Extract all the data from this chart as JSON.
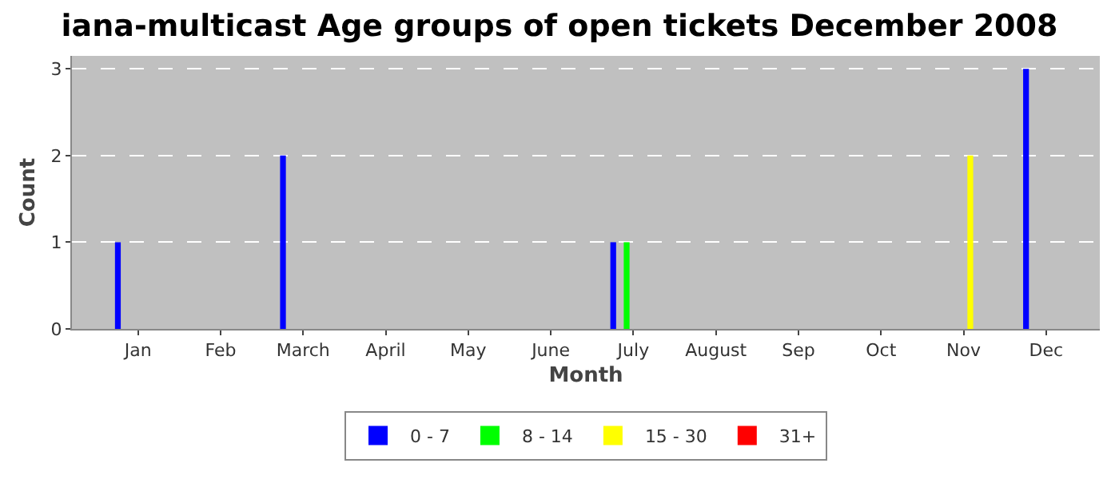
{
  "chart_data": {
    "type": "bar",
    "title": "iana-multicast Age groups of open tickets December 2008",
    "xlabel": "Month",
    "ylabel": "Count",
    "categories": [
      "Jan",
      "Feb",
      "March",
      "April",
      "May",
      "June",
      "July",
      "August",
      "Sep",
      "Oct",
      "Nov",
      "Dec"
    ],
    "series": [
      {
        "name": "0 - 7",
        "color": "#0000ff",
        "values": [
          1,
          0,
          2,
          0,
          0,
          0,
          1,
          0,
          0,
          0,
          0,
          3
        ]
      },
      {
        "name": "8 - 14",
        "color": "#00ff00",
        "values": [
          0,
          0,
          0,
          0,
          0,
          0,
          1,
          0,
          0,
          0,
          0,
          0
        ]
      },
      {
        "name": "15 - 30",
        "color": "#ffff00",
        "values": [
          0,
          0,
          0,
          0,
          0,
          0,
          0,
          0,
          0,
          0,
          2,
          0
        ]
      },
      {
        "name": "31+",
        "color": "#ff0000",
        "values": [
          0,
          0,
          0,
          0,
          0,
          0,
          0,
          0,
          0,
          0,
          0,
          0
        ]
      }
    ],
    "ylim": [
      0,
      3.15
    ],
    "yticks": [
      0,
      1,
      2,
      3
    ],
    "grid": "y",
    "legend": "bottom"
  }
}
